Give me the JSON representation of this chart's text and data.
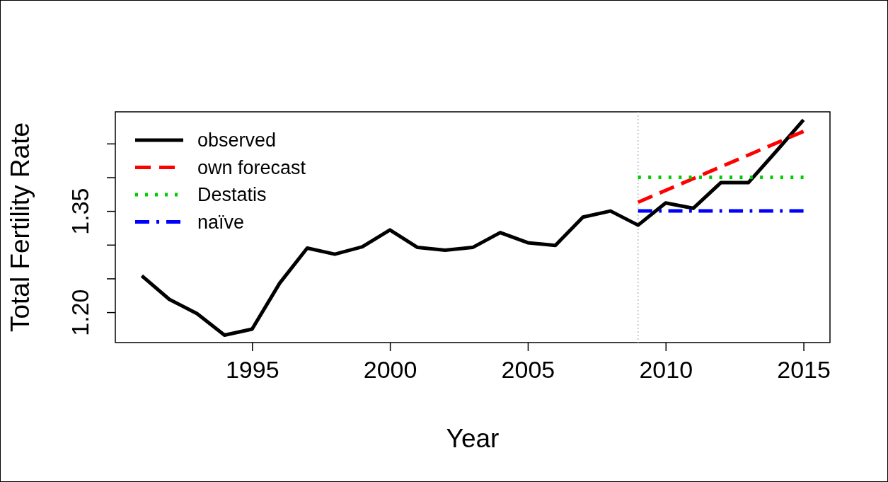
{
  "chart_data": {
    "type": "line",
    "xlabel": "Year",
    "ylabel": "Total Fertility Rate",
    "xlim": [
      1990.04,
      2015.96
    ],
    "ylim": [
      1.155,
      1.497
    ],
    "xticks": [
      1995,
      2000,
      2005,
      2010,
      2015
    ],
    "yticks": [
      {
        "value": 1.2,
        "label": "1.20"
      },
      {
        "value": 1.25,
        "label": null
      },
      {
        "value": 1.3,
        "label": null
      },
      {
        "value": 1.35,
        "label": "1.35"
      },
      {
        "value": 1.4,
        "label": null
      },
      {
        "value": 1.45,
        "label": null
      }
    ],
    "grid": false,
    "legend": "top left",
    "marker": "none",
    "ref_lines": [
      {
        "axis": "x",
        "value": 2009,
        "color": "#bebebe",
        "line_style": "dotted"
      }
    ],
    "series": [
      {
        "name": "observed",
        "color": "#000000",
        "line_style": "solid",
        "x": [
          1991,
          1992,
          1993,
          1994,
          1995,
          1996,
          1997,
          1998,
          1999,
          2000,
          2001,
          2002,
          2003,
          2004,
          2005,
          2006,
          2007,
          2008,
          2009,
          2010,
          2011,
          2012,
          2013,
          2014,
          2015
        ],
        "values": [
          1.254,
          1.219,
          1.198,
          1.166,
          1.175,
          1.243,
          1.295,
          1.286,
          1.297,
          1.322,
          1.296,
          1.292,
          1.296,
          1.318,
          1.303,
          1.299,
          1.341,
          1.35,
          1.329,
          1.362,
          1.354,
          1.392,
          1.392,
          1.438,
          1.485
        ]
      },
      {
        "name": "own forecast",
        "color": "#ff0000",
        "line_style": "dashed",
        "x": [
          2009,
          2015
        ],
        "values": [
          1.363,
          1.468
        ]
      },
      {
        "name": "Destatis",
        "color": "#00cd00",
        "line_style": "dotted",
        "x": [
          2009,
          2015
        ],
        "values": [
          1.4,
          1.4
        ]
      },
      {
        "name": "naïve",
        "color": "#0000ff",
        "line_style": "dashdot",
        "x": [
          2009,
          2015
        ],
        "values": [
          1.35,
          1.35
        ]
      }
    ]
  }
}
